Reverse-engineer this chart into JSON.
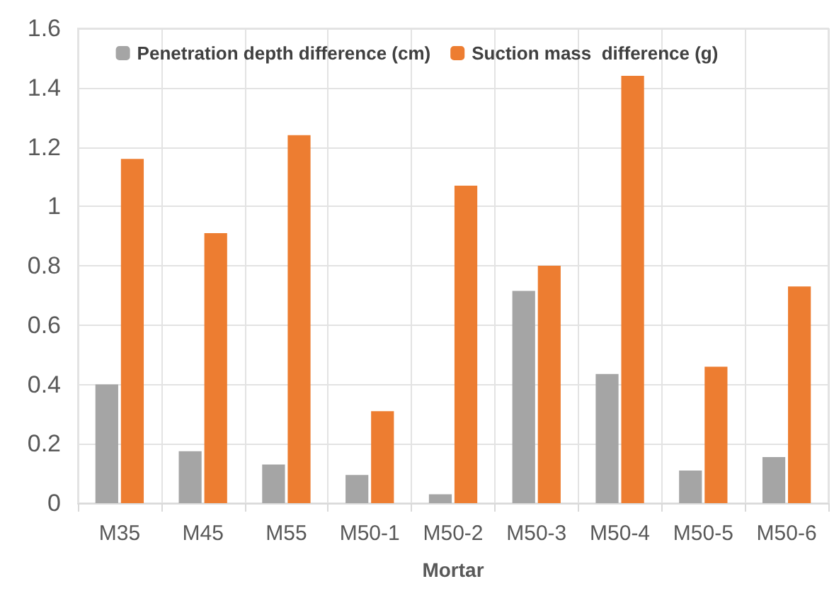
{
  "chart_data": {
    "type": "bar",
    "xlabel": "Mortar",
    "categories": [
      "M35",
      "M45",
      "M55",
      "M50-1",
      "M50-2",
      "M50-3",
      "M50-4",
      "M50-5",
      "M50-6"
    ],
    "series": [
      {
        "name": "Penetration depth difference (cm)",
        "color": "#a5a5a5",
        "values": [
          0.4,
          0.175,
          0.13,
          0.095,
          0.03,
          0.715,
          0.435,
          0.11,
          0.155
        ]
      },
      {
        "name": "Suction mass  difference (g)",
        "color": "#ed7d31",
        "values": [
          1.16,
          0.91,
          1.24,
          0.31,
          1.07,
          0.8,
          1.44,
          0.46,
          0.73
        ]
      }
    ],
    "ylim": [
      0,
      1.6
    ],
    "yticks": [
      0,
      0.2,
      0.4,
      0.6,
      0.8,
      1,
      1.2,
      1.4,
      1.6
    ],
    "grid": true,
    "legend": "top"
  }
}
